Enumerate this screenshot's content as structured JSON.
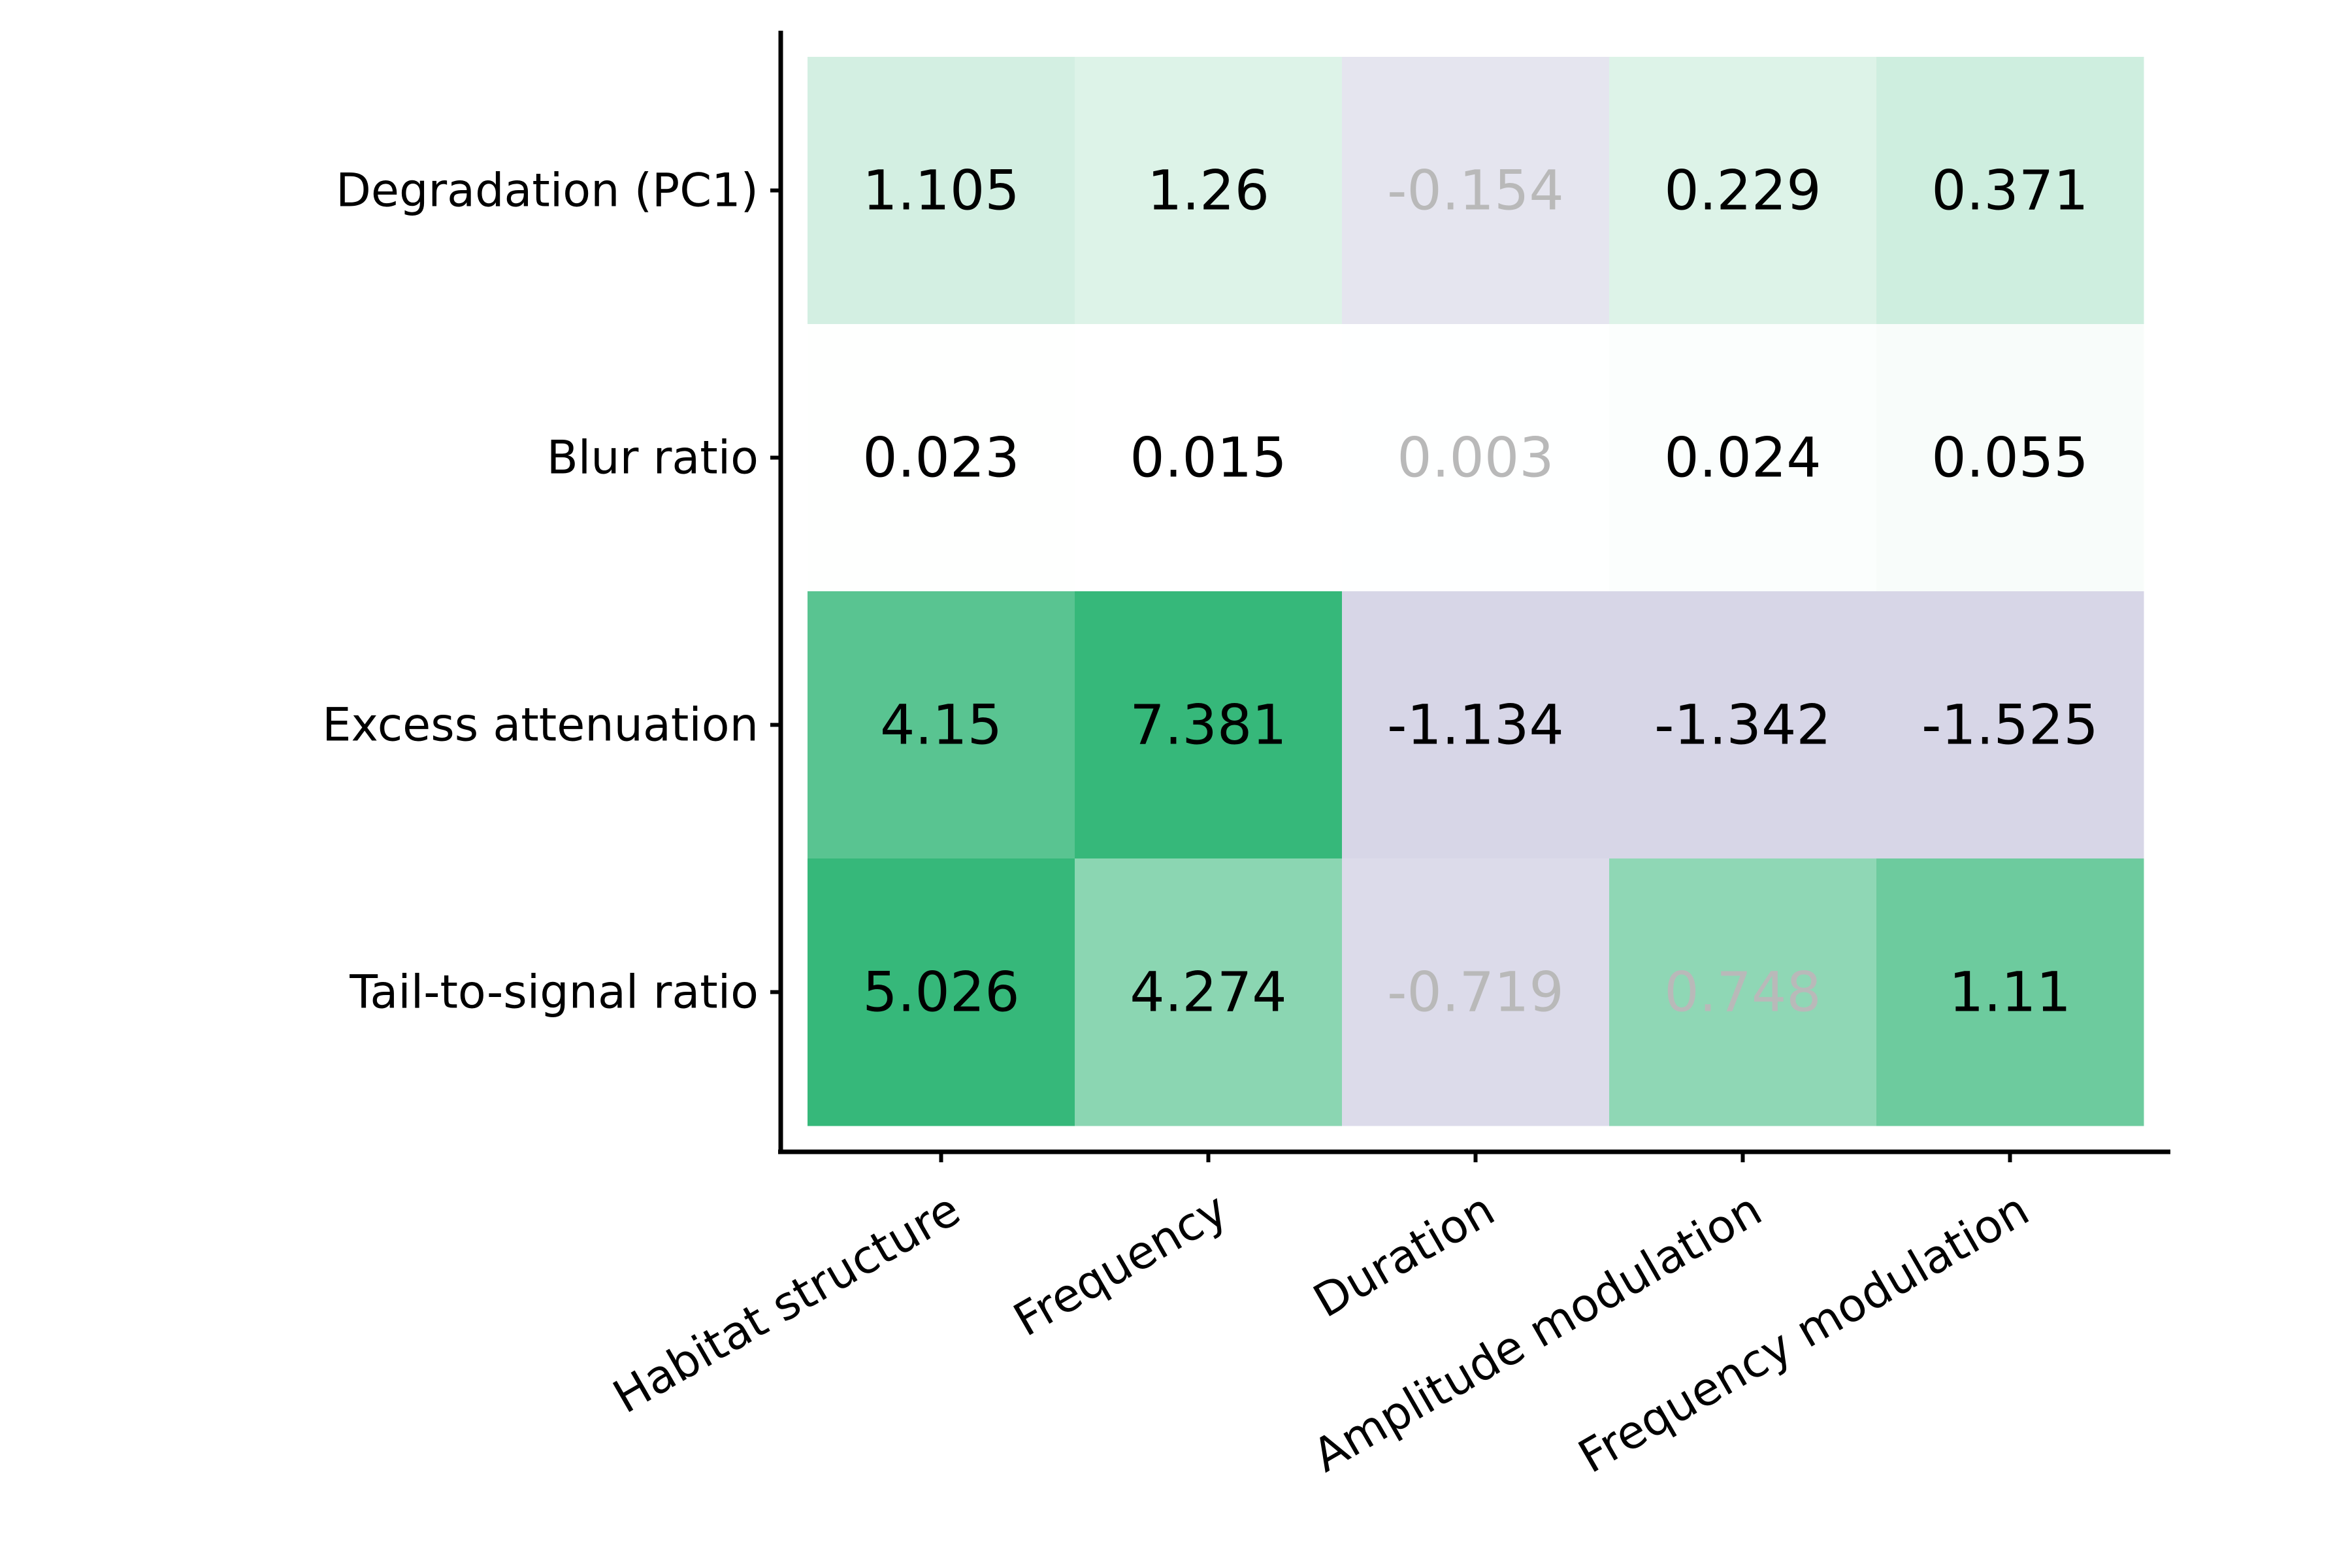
{
  "colors": {
    "positive_max": "#36b87a",
    "negative_max": "#d7d6e7",
    "neutral": "#ffffff",
    "text_significant": "#000000",
    "text_nonsignificant": "#b9b9b9",
    "axis": "#000000"
  },
  "chart_data": {
    "type": "heatmap",
    "title": "",
    "xlabel": "",
    "ylabel": "",
    "color_scaling": "per column (relative to column maximum magnitude); green = positive, lavender = negative",
    "x_categories": [
      "Habitat structure",
      "Frequency",
      "Duration",
      "Amplitude modulation",
      "Frequency modulation"
    ],
    "y_categories": [
      "Degradation (PC1)",
      "Blur ratio",
      "Excess attenuation",
      "Tail-to-signal ratio"
    ],
    "cells": [
      {
        "row": 0,
        "col": 0,
        "label": "1.105",
        "value": 1.105,
        "significant": true
      },
      {
        "row": 0,
        "col": 1,
        "label": "1.26",
        "value": 1.26,
        "significant": true
      },
      {
        "row": 0,
        "col": 2,
        "label": "-0.154",
        "value": -0.154,
        "significant": false
      },
      {
        "row": 0,
        "col": 3,
        "label": "0.229",
        "value": 0.229,
        "significant": true
      },
      {
        "row": 0,
        "col": 4,
        "label": "0.371",
        "value": 0.371,
        "significant": true
      },
      {
        "row": 1,
        "col": 0,
        "label": "0.023",
        "value": 0.023,
        "significant": true
      },
      {
        "row": 1,
        "col": 1,
        "label": "0.015",
        "value": 0.015,
        "significant": true
      },
      {
        "row": 1,
        "col": 2,
        "label": "0.003",
        "value": 0.003,
        "significant": false
      },
      {
        "row": 1,
        "col": 3,
        "label": "0.024",
        "value": 0.024,
        "significant": true
      },
      {
        "row": 1,
        "col": 4,
        "label": "0.055",
        "value": 0.055,
        "significant": true
      },
      {
        "row": 2,
        "col": 0,
        "label": "4.15",
        "value": 4.15,
        "significant": true
      },
      {
        "row": 2,
        "col": 1,
        "label": "7.381",
        "value": 7.381,
        "significant": true
      },
      {
        "row": 2,
        "col": 2,
        "label": "-1.134",
        "value": -1.134,
        "significant": true
      },
      {
        "row": 2,
        "col": 3,
        "label": "-1.342",
        "value": -1.342,
        "significant": true
      },
      {
        "row": 2,
        "col": 4,
        "label": "-1.525",
        "value": -1.525,
        "significant": true
      },
      {
        "row": 3,
        "col": 0,
        "label": "5.026",
        "value": 5.026,
        "significant": true
      },
      {
        "row": 3,
        "col": 1,
        "label": "4.274",
        "value": 4.274,
        "significant": true
      },
      {
        "row": 3,
        "col": 2,
        "label": "-0.719",
        "value": -0.719,
        "significant": false
      },
      {
        "row": 3,
        "col": 3,
        "label": "0.748",
        "value": 0.748,
        "significant": false
      },
      {
        "row": 3,
        "col": 4,
        "label": "1.11",
        "value": 1.11,
        "significant": true
      }
    ]
  }
}
